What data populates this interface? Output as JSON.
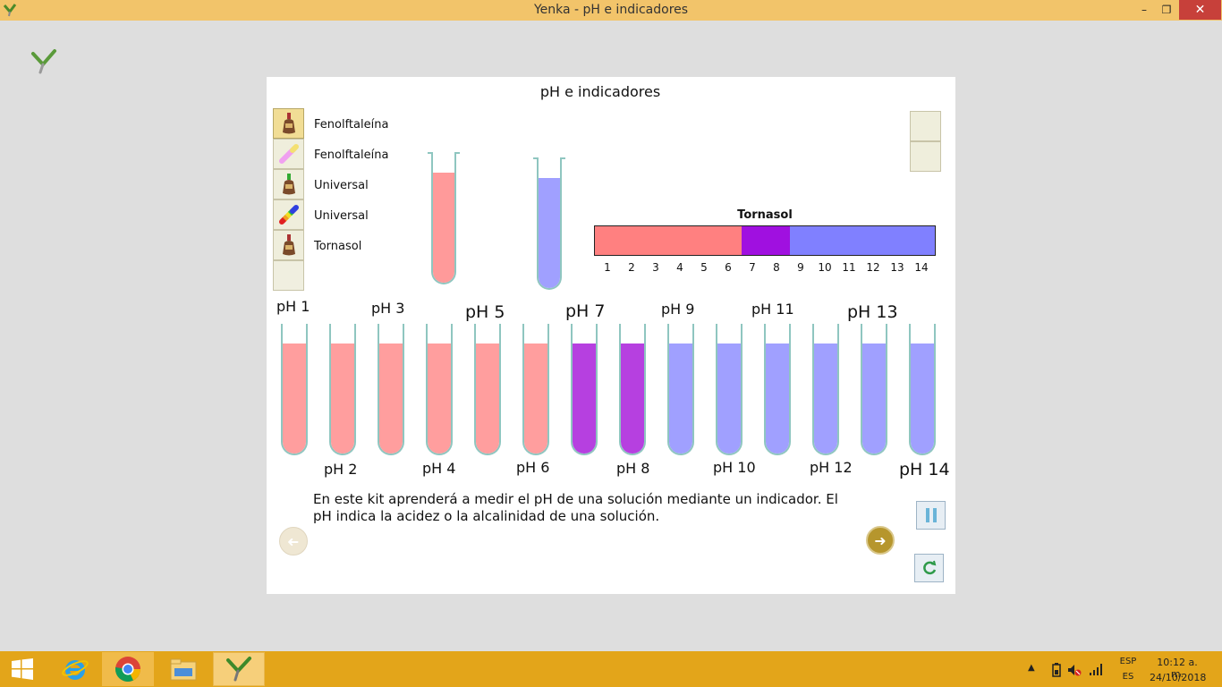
{
  "window": {
    "title": "Yenka - pH e indicadores",
    "minimize_glyph": "–",
    "maximize_glyph": "❐",
    "close_glyph": "✕"
  },
  "panel": {
    "title": "pH e indicadores",
    "indicators": [
      {
        "label": "Fenolftaleína",
        "icon": "dropper-bottle-icon"
      },
      {
        "label": "Fenolftaleína",
        "icon": "test-strip-pink-icon"
      },
      {
        "label": "Universal",
        "icon": "dropper-bottle-icon"
      },
      {
        "label": "Universal",
        "icon": "rainbow-strip-icon"
      },
      {
        "label": "Tornasol",
        "icon": "dropper-bottle-icon"
      }
    ],
    "scale": {
      "title": "Tornasol",
      "ticks": [
        "1",
        "2",
        "3",
        "4",
        "5",
        "6",
        "7",
        "8",
        "9",
        "10",
        "11",
        "12",
        "13",
        "14"
      ],
      "segments": [
        {
          "color": "#ff8080",
          "from": 1,
          "to": 6.5
        },
        {
          "color": "#a010e0",
          "from": 6.5,
          "to": 8.5
        },
        {
          "color": "#8080ff",
          "from": 8.5,
          "to": 14.5
        }
      ]
    },
    "top_tubes": [
      {
        "color": "#ff9a9a",
        "fill": 0.84
      },
      {
        "color": "#a0a0ff",
        "fill": 0.84
      }
    ],
    "tubes": [
      {
        "label": "pH 1",
        "color": "#ff9e9e"
      },
      {
        "label": "pH 2",
        "color": "#ff9e9e"
      },
      {
        "label": "pH 3",
        "color": "#ff9e9e"
      },
      {
        "label": "pH 4",
        "color": "#ff9e9e"
      },
      {
        "label": "pH 5",
        "color": "#ff9e9e"
      },
      {
        "label": "pH 6",
        "color": "#ff9e9e"
      },
      {
        "label": "pH 7",
        "color": "#b640e0"
      },
      {
        "label": "pH 8",
        "color": "#b640e0"
      },
      {
        "label": "pH 9",
        "color": "#a0a0ff"
      },
      {
        "label": "pH 10",
        "color": "#a0a0ff"
      },
      {
        "label": "pH 11",
        "color": "#a0a0ff"
      },
      {
        "label": "pH 12",
        "color": "#a0a0ff"
      },
      {
        "label": "pH 13",
        "color": "#a0a0ff"
      },
      {
        "label": "pH 14",
        "color": "#a0a0ff"
      }
    ],
    "description": "En este kit aprenderá a medir el pH de una solución mediante un indicador. El pH indica la acidez o la alcalinidad de una solución.",
    "buttons": {
      "prev_glyph": "➜",
      "next_glyph": "➜"
    }
  },
  "taskbar": {
    "items": [
      "start-icon",
      "internet-explorer-icon",
      "chrome-icon",
      "file-explorer-icon",
      "yenka-icon"
    ],
    "lang_top": "ESP",
    "lang_bottom": "ES",
    "time": "10:12 a. m.",
    "date": "24/10/2018"
  }
}
